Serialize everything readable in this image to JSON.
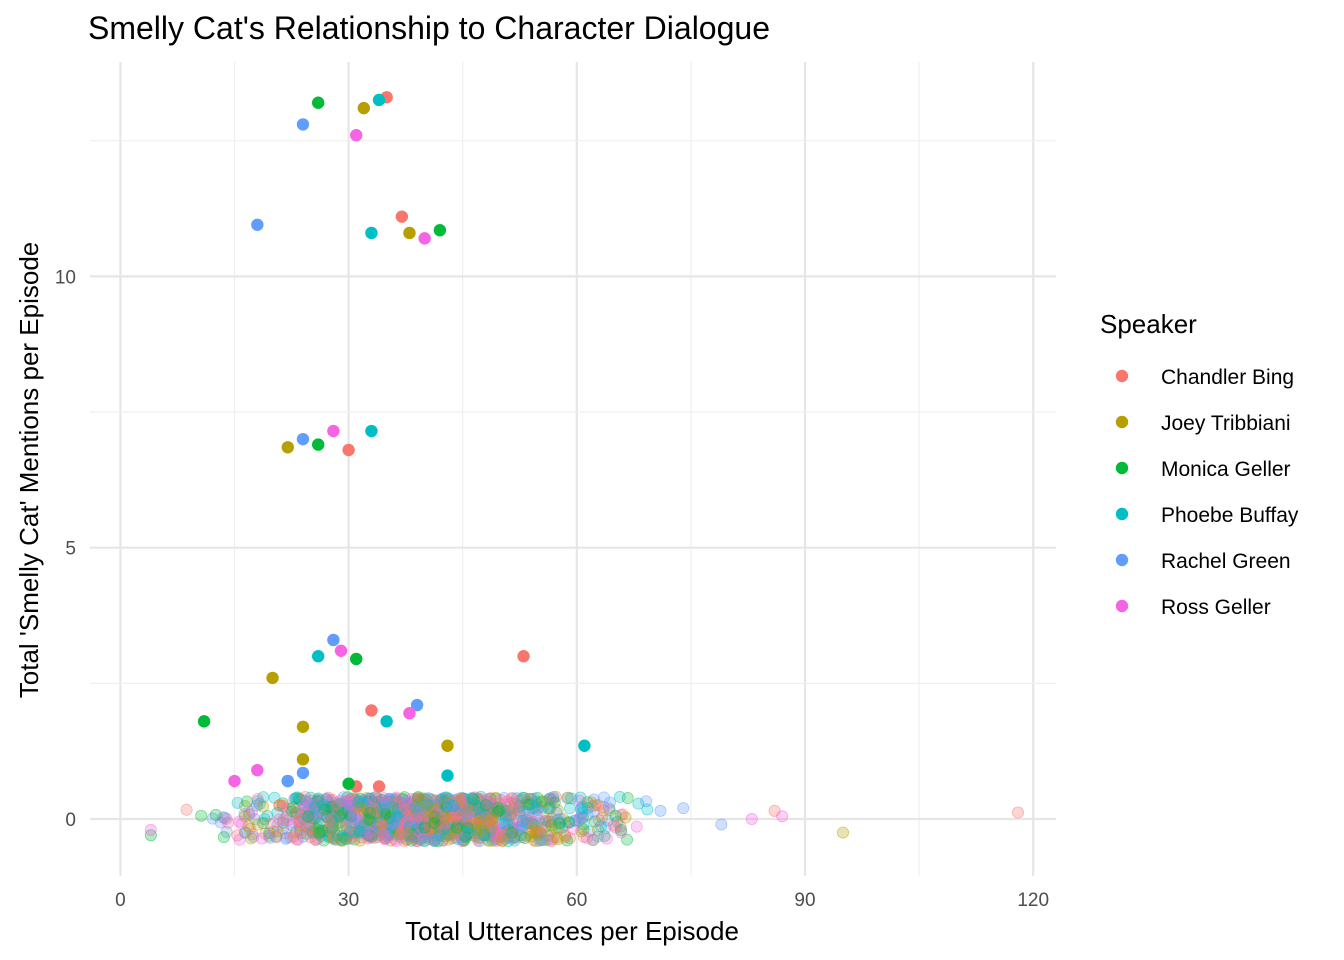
{
  "chart_data": {
    "type": "scatter",
    "title": "Smelly Cat's Relationship to Character Dialogue",
    "xlabel": "Total Utterances per Episode",
    "ylabel": "Total 'Smelly Cat' Mentions per Episode",
    "xlim": [
      -4,
      123
    ],
    "ylim": [
      -1.05,
      13.95
    ],
    "x_ticks": [
      0,
      30,
      60,
      90,
      120
    ],
    "y_ticks": [
      0,
      5,
      10
    ],
    "grid": true,
    "legend": {
      "title": "Speaker",
      "position": "right",
      "entries": [
        "Chandler Bing",
        "Joey Tribbiani",
        "Monica Geller",
        "Phoebe Buffay",
        "Rachel Green",
        "Ross Geller"
      ]
    },
    "colors": {
      "Chandler Bing": "#F8766D",
      "Joey Tribbiani": "#B79F00",
      "Monica Geller": "#00BA38",
      "Phoebe Buffay": "#00BFC4",
      "Rachel Green": "#619CFF",
      "Ross Geller": "#F564E3"
    },
    "series": [
      {
        "name": "Chandler Bing",
        "points": [
          [
            35,
            13.3
          ],
          [
            37,
            11.1
          ],
          [
            30,
            6.8
          ],
          [
            53,
            3.0
          ],
          [
            33,
            2.0
          ],
          [
            31,
            0.6
          ],
          [
            34,
            0.6
          ]
        ]
      },
      {
        "name": "Joey Tribbiani",
        "points": [
          [
            32,
            13.1
          ],
          [
            38,
            10.8
          ],
          [
            22,
            6.85
          ],
          [
            20,
            2.6
          ],
          [
            24,
            1.7
          ],
          [
            24,
            1.1
          ],
          [
            43,
            1.35
          ]
        ]
      },
      {
        "name": "Monica Geller",
        "points": [
          [
            26,
            13.2
          ],
          [
            42,
            10.85
          ],
          [
            26,
            6.9
          ],
          [
            31,
            2.95
          ],
          [
            11,
            1.8
          ],
          [
            22,
            0.7
          ],
          [
            30,
            0.65
          ]
        ]
      },
      {
        "name": "Phoebe Buffay",
        "points": [
          [
            34,
            13.25
          ],
          [
            33,
            10.8
          ],
          [
            33,
            7.15
          ],
          [
            26,
            3.0
          ],
          [
            35,
            1.8
          ],
          [
            61,
            1.35
          ],
          [
            43,
            0.8
          ]
        ]
      },
      {
        "name": "Rachel Green",
        "points": [
          [
            24,
            12.8
          ],
          [
            18,
            10.95
          ],
          [
            24,
            7.0
          ],
          [
            28,
            3.3
          ],
          [
            39,
            2.1
          ],
          [
            24,
            0.85
          ],
          [
            22,
            0.7
          ]
        ]
      },
      {
        "name": "Ross Geller",
        "points": [
          [
            31,
            12.6
          ],
          [
            40,
            10.7
          ],
          [
            28,
            7.15
          ],
          [
            29,
            3.1
          ],
          [
            38,
            1.95
          ],
          [
            18,
            0.9
          ],
          [
            15,
            0.7
          ]
        ]
      }
    ],
    "background_cloud": {
      "description_of_marks": "faded jittered points at 0 mentions",
      "y_value": 0,
      "outliers": [
        [
          4,
          -0.3,
          "Monica Geller"
        ],
        [
          4,
          -0.2,
          "Ross Geller"
        ],
        [
          71,
          0.15,
          "Rachel Green"
        ],
        [
          74,
          0.2,
          "Rachel Green"
        ],
        [
          79,
          -0.1,
          "Rachel Green"
        ],
        [
          83,
          0.0,
          "Ross Geller"
        ],
        [
          86,
          0.15,
          "Chandler Bing"
        ],
        [
          87,
          0.05,
          "Ross Geller"
        ],
        [
          95,
          -0.25,
          "Joey Tribbiani"
        ],
        [
          118,
          0.12,
          "Chandler Bing"
        ]
      ]
    }
  }
}
